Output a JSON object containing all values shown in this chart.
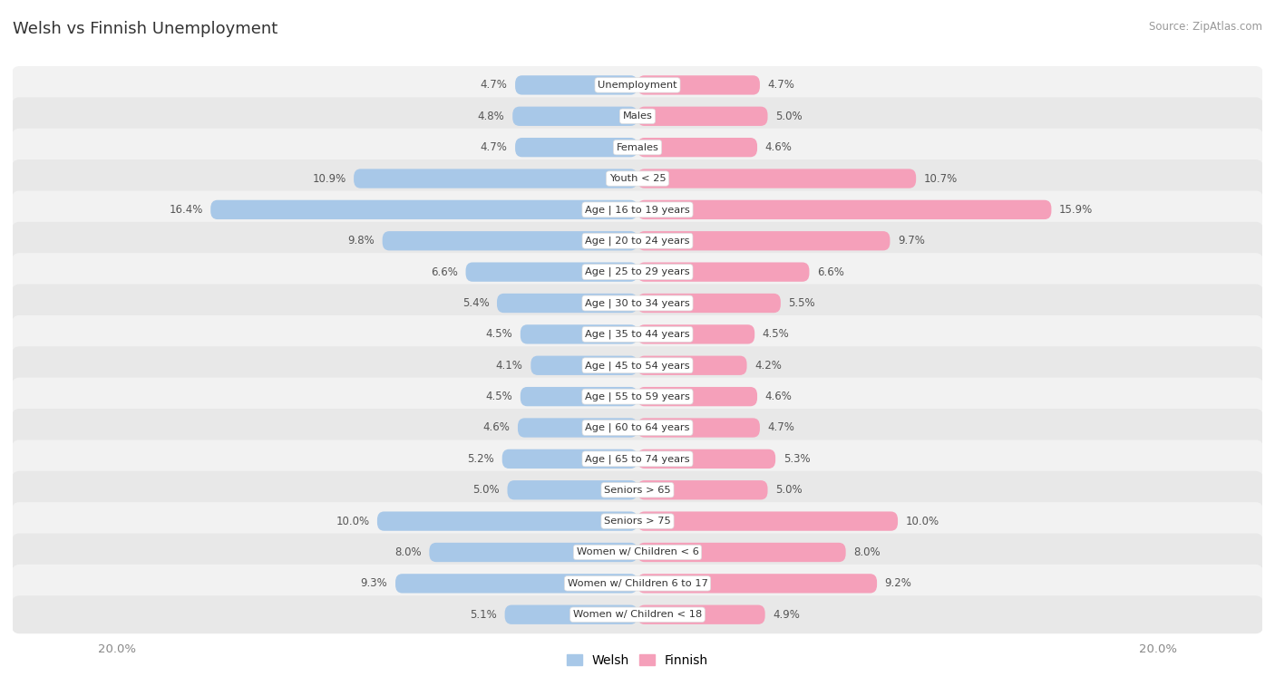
{
  "title": "Welsh vs Finnish Unemployment",
  "source": "Source: ZipAtlas.com",
  "categories": [
    "Unemployment",
    "Males",
    "Females",
    "Youth < 25",
    "Age | 16 to 19 years",
    "Age | 20 to 24 years",
    "Age | 25 to 29 years",
    "Age | 30 to 34 years",
    "Age | 35 to 44 years",
    "Age | 45 to 54 years",
    "Age | 55 to 59 years",
    "Age | 60 to 64 years",
    "Age | 65 to 74 years",
    "Seniors > 65",
    "Seniors > 75",
    "Women w/ Children < 6",
    "Women w/ Children 6 to 17",
    "Women w/ Children < 18"
  ],
  "welsh": [
    4.7,
    4.8,
    4.7,
    10.9,
    16.4,
    9.8,
    6.6,
    5.4,
    4.5,
    4.1,
    4.5,
    4.6,
    5.2,
    5.0,
    10.0,
    8.0,
    9.3,
    5.1
  ],
  "finnish": [
    4.7,
    5.0,
    4.6,
    10.7,
    15.9,
    9.7,
    6.6,
    5.5,
    4.5,
    4.2,
    4.6,
    4.7,
    5.3,
    5.0,
    10.0,
    8.0,
    9.2,
    4.9
  ],
  "max_val": 20.0,
  "welsh_color": "#a8c8e8",
  "finnish_color": "#f5a0ba",
  "row_bg_odd": "#f2f2f2",
  "row_bg_even": "#e8e8e8",
  "legend_welsh": "Welsh",
  "legend_finnish": "Finnish"
}
